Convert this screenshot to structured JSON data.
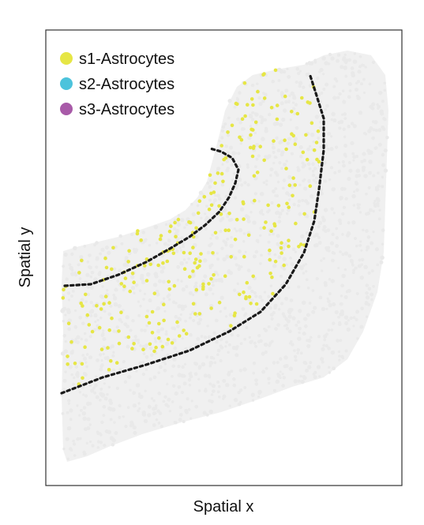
{
  "chart_data": {
    "type": "scatter",
    "title": "",
    "xlabel": "Spatial x",
    "ylabel": "Spatial y",
    "legend_placement": "top-left",
    "grid": false,
    "axes_frame": true,
    "background_color": "#e9e9e9",
    "series": [
      {
        "name": "s1-Astrocytes",
        "color": "#e6e645"
      },
      {
        "name": "s2-Astrocytes",
        "color": "#4cc3dc"
      },
      {
        "name": "s3-Astrocytes",
        "color": "#a85aa8"
      }
    ],
    "boundaries": [
      {
        "style": "dotted",
        "color": "#1a1a1a"
      },
      {
        "style": "dotted",
        "color": "#1a1a1a"
      }
    ]
  }
}
